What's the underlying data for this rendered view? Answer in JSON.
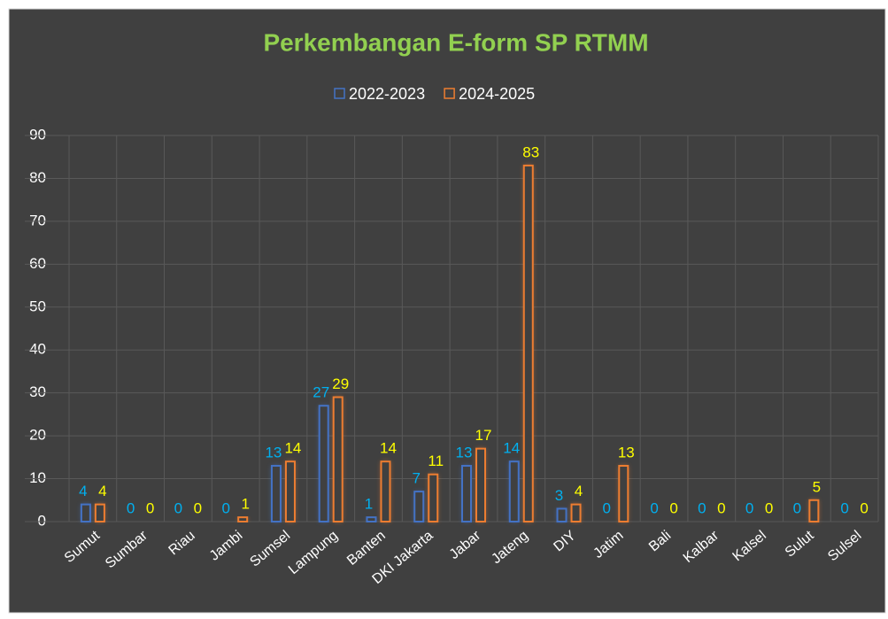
{
  "chart_data": {
    "type": "bar",
    "title": "Perkembangan E-form SP RTMM",
    "categories": [
      "Sumut",
      "Sumbar",
      "Riau",
      "Jambi",
      "Sumsel",
      "Lampung",
      "Banten",
      "DKI Jakarta",
      "Jabar",
      "Jateng",
      "DIY",
      "Jatim",
      "Bali",
      "Kalbar",
      "Kalsel",
      "Sulut",
      "Sulsel"
    ],
    "series": [
      {
        "name": "2022-2023",
        "color": "#4472c4",
        "label_color": "#00b0f0",
        "values": [
          4,
          0,
          0,
          0,
          13,
          27,
          1,
          7,
          13,
          14,
          3,
          0,
          0,
          0,
          0,
          0,
          0
        ]
      },
      {
        "name": "2024-2025",
        "color": "#ed7d31",
        "label_color": "#ffff00",
        "values": [
          4,
          0,
          0,
          1,
          14,
          29,
          14,
          11,
          17,
          83,
          4,
          13,
          0,
          0,
          0,
          5,
          0
        ]
      }
    ],
    "ylim": [
      0,
      90
    ],
    "yticks": [
      0,
      10,
      20,
      30,
      40,
      50,
      60,
      70,
      80,
      90
    ],
    "grid": true,
    "legend": "top"
  }
}
